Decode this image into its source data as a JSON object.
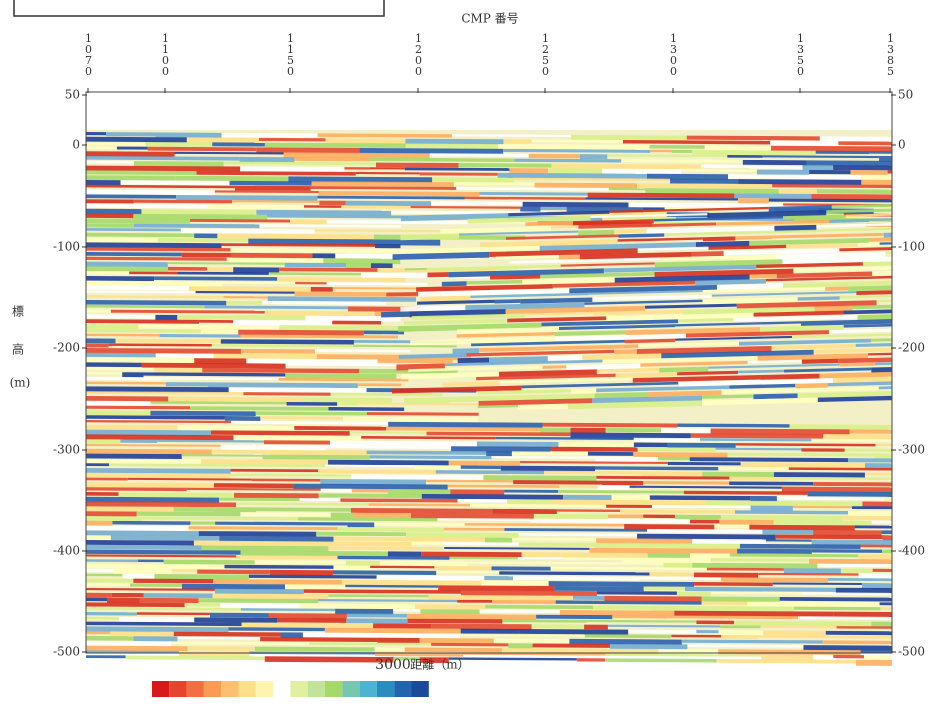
{
  "axis_top": {
    "label": "CMP 番号",
    "ticks": [
      "1070",
      "1100",
      "1150",
      "1200",
      "1250",
      "1300",
      "1350",
      "1385"
    ]
  },
  "axis_left": {
    "label": "標",
    "label2": "高",
    "unit": "(m)",
    "ticks": [
      "50",
      "0",
      "-100",
      "-200",
      "-300",
      "-400",
      "-500"
    ]
  },
  "axis_right": {
    "ticks": [
      "50",
      "0",
      "-100",
      "-200",
      "-300",
      "-400",
      "-500"
    ]
  },
  "axis_bottom": {
    "tick": "3000",
    "label": "距離（m）"
  }
}
